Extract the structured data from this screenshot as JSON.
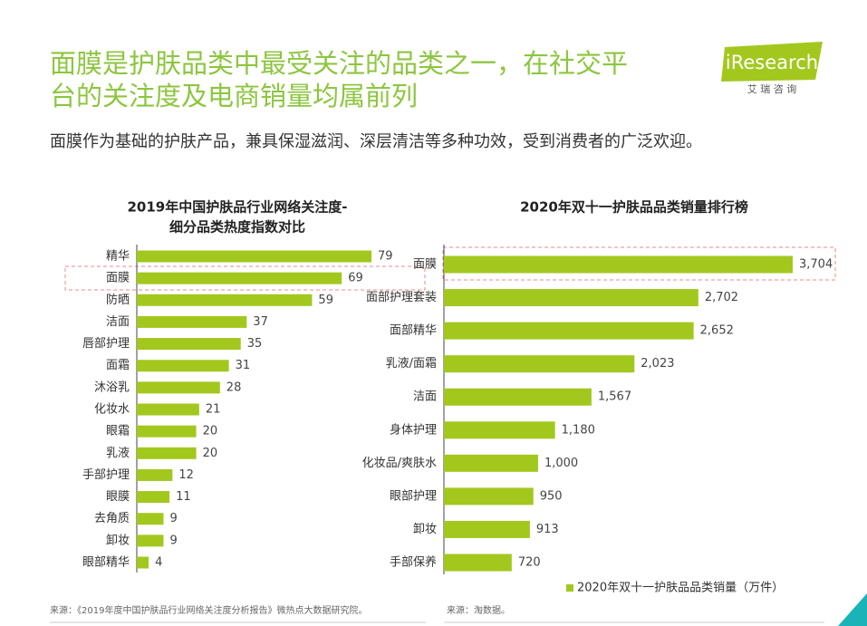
{
  "header": {
    "title_lines": [
      "面膜是护肤品类中最受关注的品类之一，在社交平",
      "台的关注度及电商销量均属前列"
    ],
    "subtitle": "面膜作为基础的护肤产品，兼具保湿滋润、深层清洁等多种功效，受到消费者的广泛欢迎。",
    "logo": "iResearch",
    "logo_sub": "艾 瑞 咨 询"
  },
  "chart_data": [
    {
      "type": "bar",
      "orientation": "horizontal",
      "title": [
        "2019年中国护肤品行业网络关注度-",
        "细分品类热度指数对比"
      ],
      "categories": [
        "精华",
        "面膜",
        "防晒",
        "洁面",
        "唇部护理",
        "面霜",
        "沐浴乳",
        "化妆水",
        "眼霜",
        "乳液",
        "手部护理",
        "眼膜",
        "去角质",
        "卸妆",
        "眼部精华"
      ],
      "values": [
        79,
        69,
        59,
        37,
        35,
        31,
        28,
        21,
        20,
        20,
        12,
        11,
        9,
        9,
        4
      ],
      "color": "#a2c81e",
      "source": "来源：《2019年度中国护肤品行业网络关注度分析报告》微热点大数据研究院。"
    },
    {
      "type": "bar",
      "orientation": "horizontal",
      "title": [
        "2020年双十一护肤品品类销量排行榜"
      ],
      "categories": [
        "面膜",
        "面部护理套装",
        "面部精华",
        "乳液/面霜",
        "洁面",
        "身体护理",
        "化妆品/爽肤水",
        "眼部护理",
        "卸妆",
        "手部保养"
      ],
      "series": [
        {
          "name": "2020年双十一护肤品品类销量（万件）",
          "color": "#a2c81e",
          "values": [
            3704,
            2702,
            2652,
            2023,
            1567,
            1180,
            1000,
            950,
            913,
            720
          ],
          "value_labels": [
            "3,704",
            "2,702",
            "2,652",
            "2,023",
            "1,567",
            "1,180",
            "1,000",
            "950",
            "913",
            "720"
          ]
        }
      ],
      "legend": "bottom",
      "source": "来源：淘数据。"
    }
  ]
}
